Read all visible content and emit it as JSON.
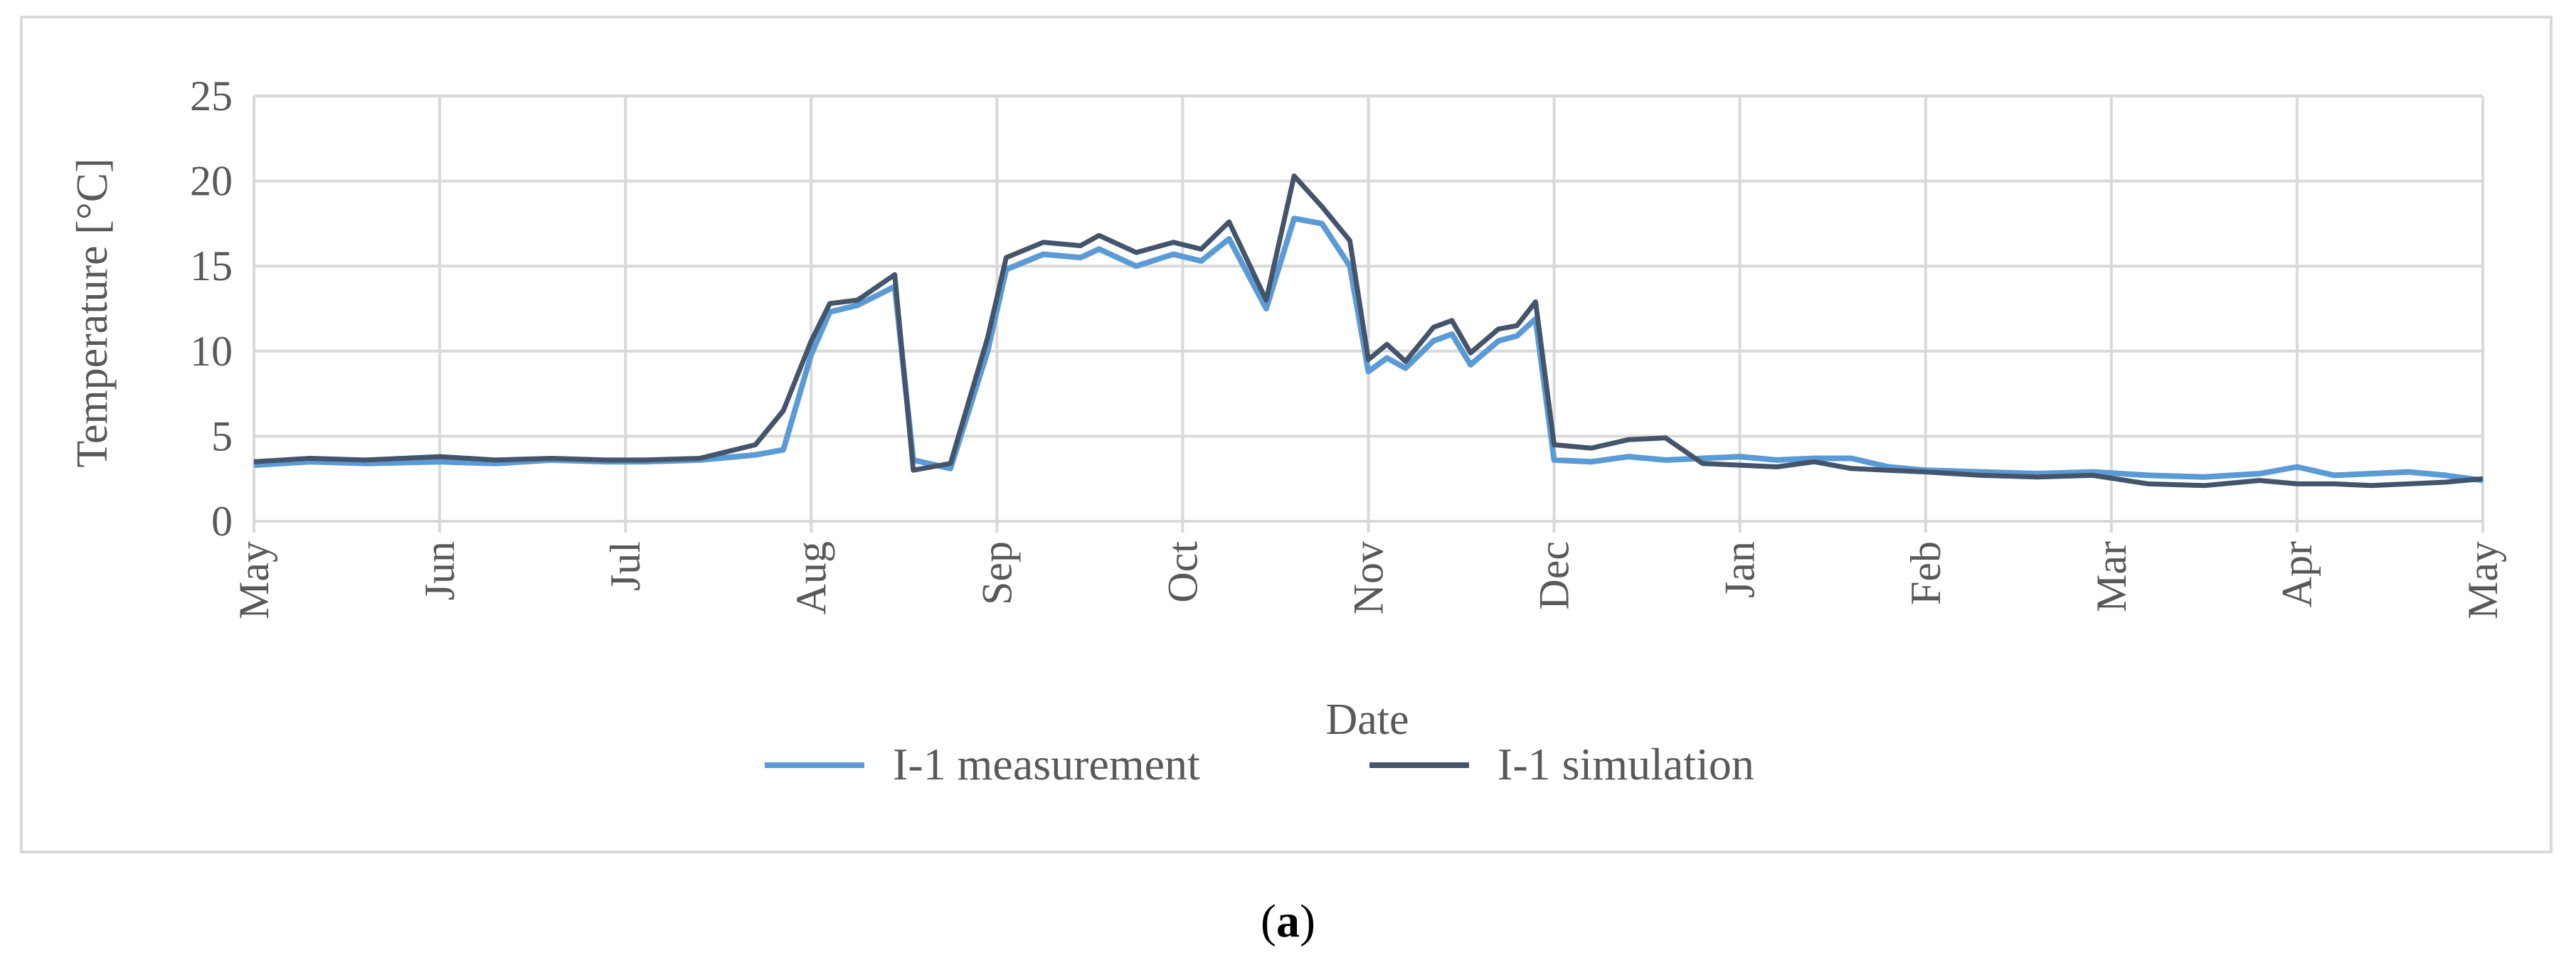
{
  "chart_data": {
    "type": "line",
    "title": "",
    "xlabel": "Date",
    "ylabel": "Temperature [°C]",
    "ylim": [
      0,
      25
    ],
    "yticks": [
      0,
      5,
      10,
      15,
      20,
      25
    ],
    "xticks": [
      "May",
      "Jun",
      "Jul",
      "Aug",
      "Sep",
      "Oct",
      "Nov",
      "Dec",
      "Jan",
      "Feb",
      "Mar",
      "Apr",
      "May"
    ],
    "grid": "major gridlines on both axes",
    "legend_position": "bottom",
    "colors": {
      "measurement": "#5b9bd5",
      "simulation": "#44546a",
      "grid": "#d9d9d9",
      "text": "#595959"
    },
    "series": [
      {
        "name": "I-1 measurement",
        "x": [
          0.0,
          0.3,
          0.6,
          1.0,
          1.3,
          1.6,
          1.9,
          2.1,
          2.4,
          2.7,
          2.85,
          3.0,
          3.1,
          3.25,
          3.45,
          3.55,
          3.75,
          3.95,
          4.05,
          4.25,
          4.45,
          4.55,
          4.75,
          4.95,
          5.1,
          5.25,
          5.45,
          5.6,
          5.75,
          5.9,
          6.0,
          6.1,
          6.2,
          6.35,
          6.45,
          6.55,
          6.7,
          6.8,
          6.9,
          7.0,
          7.2,
          7.4,
          7.6,
          7.8,
          8.0,
          8.2,
          8.4,
          8.6,
          8.8,
          9.0,
          9.3,
          9.6,
          9.9,
          10.2,
          10.5,
          10.8,
          11.0,
          11.2,
          11.4,
          11.6,
          11.8,
          12.0
        ],
        "y": [
          3.3,
          3.5,
          3.4,
          3.5,
          3.4,
          3.6,
          3.5,
          3.5,
          3.6,
          3.9,
          4.2,
          9.8,
          12.3,
          12.7,
          13.8,
          3.6,
          3.1,
          10.0,
          14.8,
          15.7,
          15.5,
          16.0,
          15.0,
          15.7,
          15.3,
          16.6,
          12.5,
          17.8,
          17.5,
          15.0,
          8.8,
          9.6,
          9.0,
          10.6,
          11.0,
          9.2,
          10.6,
          10.9,
          11.9,
          3.6,
          3.5,
          3.8,
          3.6,
          3.7,
          3.8,
          3.6,
          3.7,
          3.7,
          3.2,
          3.0,
          2.9,
          2.8,
          2.9,
          2.7,
          2.6,
          2.8,
          3.2,
          2.7,
          2.8,
          2.9,
          2.7,
          2.4
        ]
      },
      {
        "name": "I-1 simulation",
        "x": [
          0.0,
          0.3,
          0.6,
          1.0,
          1.3,
          1.6,
          1.9,
          2.1,
          2.4,
          2.7,
          2.85,
          3.0,
          3.1,
          3.25,
          3.45,
          3.55,
          3.75,
          3.95,
          4.05,
          4.25,
          4.45,
          4.55,
          4.75,
          4.95,
          5.1,
          5.25,
          5.45,
          5.6,
          5.75,
          5.9,
          6.0,
          6.1,
          6.2,
          6.35,
          6.45,
          6.55,
          6.7,
          6.8,
          6.9,
          7.0,
          7.2,
          7.4,
          7.6,
          7.8,
          8.0,
          8.2,
          8.4,
          8.6,
          8.8,
          9.0,
          9.3,
          9.6,
          9.9,
          10.2,
          10.5,
          10.8,
          11.0,
          11.2,
          11.4,
          11.6,
          11.8,
          12.0
        ],
        "y": [
          3.5,
          3.7,
          3.6,
          3.8,
          3.6,
          3.7,
          3.6,
          3.6,
          3.7,
          4.5,
          6.5,
          10.6,
          12.8,
          13.0,
          14.5,
          3.0,
          3.4,
          10.8,
          15.5,
          16.4,
          16.2,
          16.8,
          15.8,
          16.4,
          16.0,
          17.6,
          13.0,
          20.3,
          18.5,
          16.5,
          9.5,
          10.4,
          9.4,
          11.4,
          11.8,
          9.9,
          11.3,
          11.5,
          12.9,
          4.5,
          4.3,
          4.8,
          4.9,
          3.4,
          3.3,
          3.2,
          3.5,
          3.1,
          3.0,
          2.9,
          2.7,
          2.6,
          2.7,
          2.2,
          2.1,
          2.4,
          2.2,
          2.2,
          2.1,
          2.2,
          2.3,
          2.5
        ]
      }
    ]
  },
  "caption": {
    "open": "(",
    "letter": "a",
    "close": ")"
  }
}
